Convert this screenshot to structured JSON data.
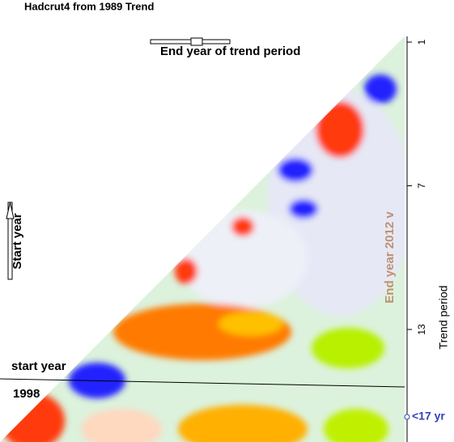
{
  "header": {
    "title": "Hadcrut4  from 1989  Trend"
  },
  "controls": {
    "end_year_label": "End year of trend period",
    "start_year_label": "Start year"
  },
  "axis": {
    "label": "Trend period",
    "ticks": [
      1,
      7,
      13
    ]
  },
  "annotations": {
    "start_year": "start year",
    "start_year_value": "1998",
    "end_year": "End year 2012  v",
    "period": "<17 yr"
  }
}
